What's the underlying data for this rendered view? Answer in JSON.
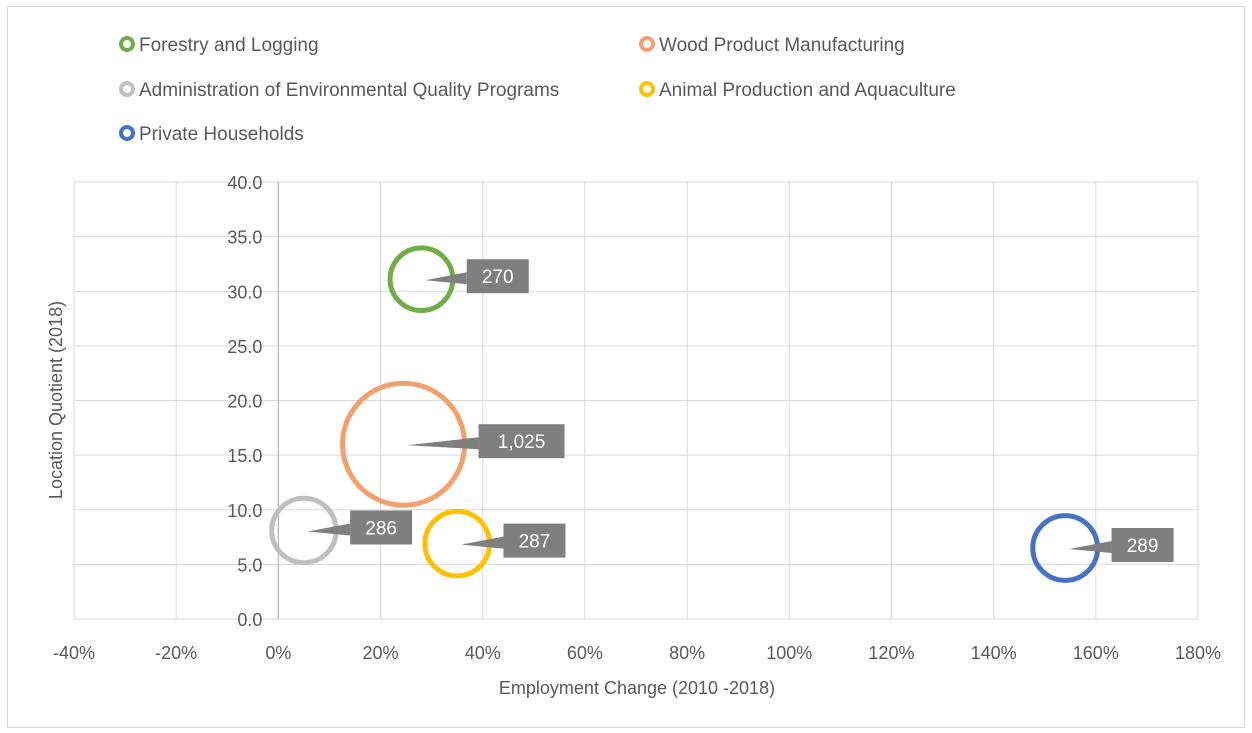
{
  "chart_data": {
    "type": "bubble",
    "xlabel": "Employment Change (2010 -2018)",
    "ylabel": "Location Quotient (2018)",
    "xlim": [
      -40,
      180
    ],
    "ylim": [
      0,
      40
    ],
    "x_ticks": [
      "-40%",
      "-20%",
      "0%",
      "20%",
      "40%",
      "60%",
      "80%",
      "100%",
      "120%",
      "140%",
      "160%",
      "180%"
    ],
    "y_ticks": [
      "0.0",
      "5.0",
      "10.0",
      "15.0",
      "20.0",
      "25.0",
      "30.0",
      "35.0",
      "40.0"
    ],
    "grid": true,
    "legend_position": "top",
    "series": [
      {
        "name": "Forestry and Logging",
        "color": "#70ad47",
        "x": 28,
        "y": 31.1,
        "size": 270,
        "label": "270"
      },
      {
        "name": "Wood Product Manufacturing",
        "color": "#f4a06c",
        "x": 24.5,
        "y": 16.0,
        "size": 1025,
        "label": "1,025"
      },
      {
        "name": "Administration of Environmental Quality Programs",
        "color": "#bfbfbf",
        "x": 5,
        "y": 8.1,
        "size": 286,
        "label": "286"
      },
      {
        "name": "Animal Production and Aquaculture",
        "color": "#ffc000",
        "x": 35,
        "y": 6.9,
        "size": 287,
        "label": "287"
      },
      {
        "name": "Private Households",
        "color": "#4472c4",
        "x": 154,
        "y": 6.5,
        "size": 289,
        "label": "289"
      }
    ]
  }
}
